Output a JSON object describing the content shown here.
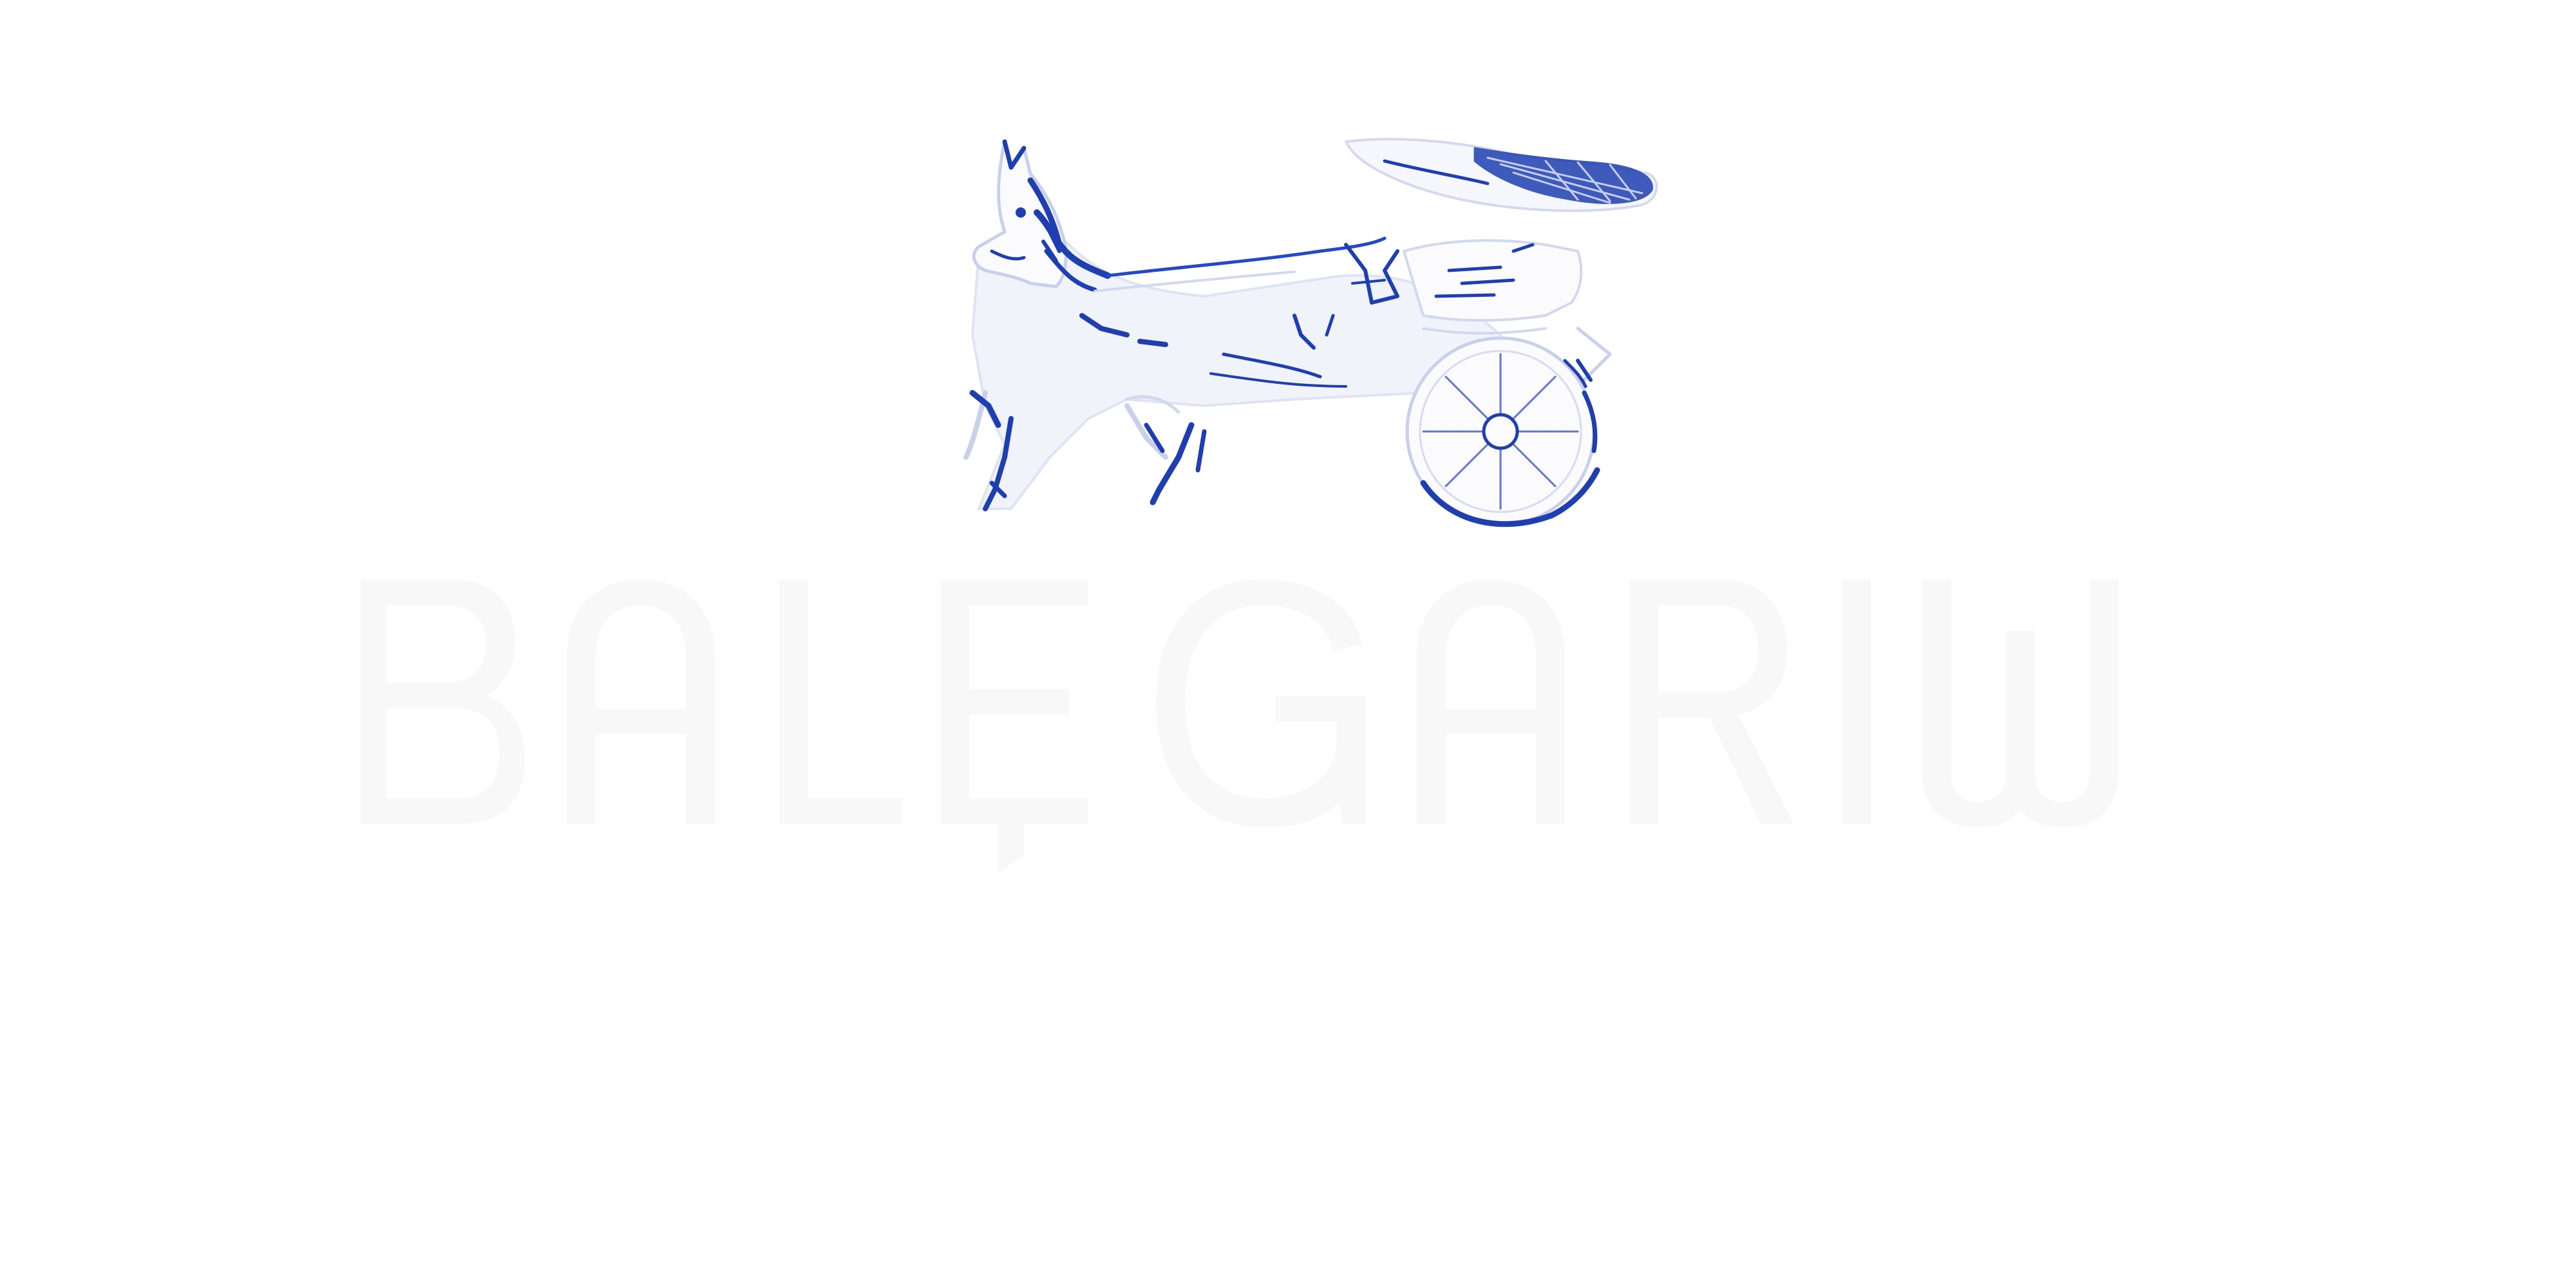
{
  "logo": {
    "emblem_icon": "horse-carriage-icon",
    "wordmark_text": "BALE GARIW",
    "colors": {
      "emblem_blue": "#1f3fb0",
      "emblem_light": "#e9ecf6",
      "wordmark": "#f8f8f8",
      "background": "#ffffff"
    }
  }
}
